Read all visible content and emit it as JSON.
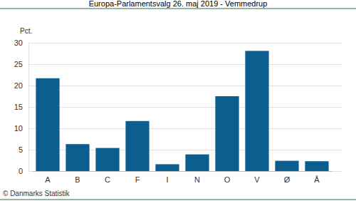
{
  "chart_data": {
    "type": "bar",
    "title": "Europa-Parlamentsvalg 26. maj 2019 - Vemmedrup",
    "ylabel": "Pct.",
    "annotation": "© Danmarks Statistik",
    "categories": [
      "A",
      "B",
      "C",
      "F",
      "I",
      "N",
      "O",
      "V",
      "Ø",
      "Å"
    ],
    "values": [
      21.7,
      6.3,
      5.4,
      11.7,
      1.6,
      3.9,
      17.5,
      28.1,
      2.4,
      2.3
    ],
    "color": "#0b5e8e",
    "ylim": [
      0,
      30
    ],
    "yticks": [
      0,
      5,
      10,
      15,
      20,
      25,
      30
    ],
    "grid": true
  }
}
